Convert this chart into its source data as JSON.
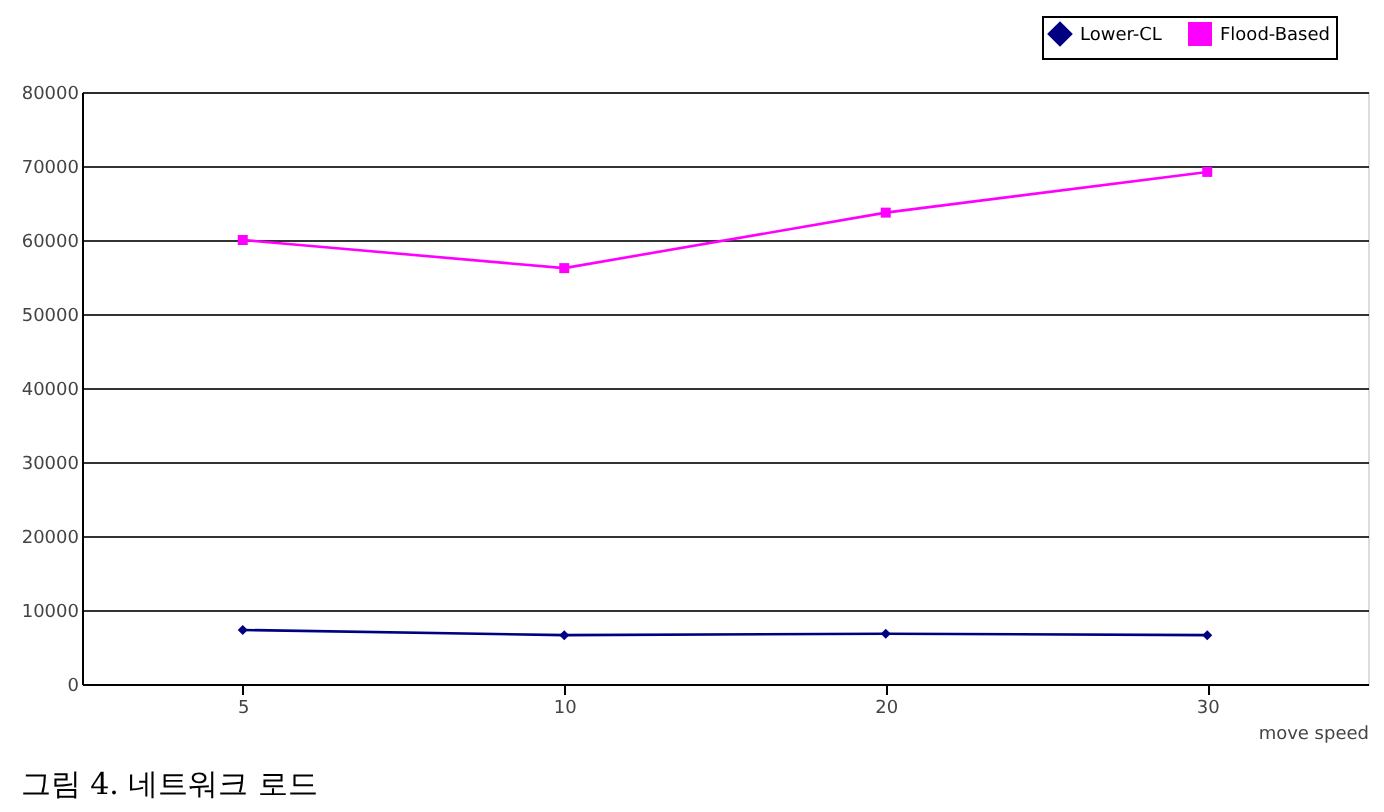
{
  "chart_data": {
    "type": "line",
    "xlabel": "move speed",
    "categories": [
      "5",
      "10",
      "20",
      "30"
    ],
    "series": [
      {
        "name": "Lower-CL",
        "color": "#000080",
        "marker": "diamond",
        "values": [
          7300,
          6600,
          6800,
          6600
        ]
      },
      {
        "name": "Flood-Based",
        "color": "#ff00ff",
        "marker": "square",
        "values": [
          60000,
          56200,
          63700,
          69200
        ]
      }
    ],
    "ylim": [
      0,
      80000
    ],
    "yticks": [
      0,
      10000,
      20000,
      30000,
      40000,
      50000,
      60000,
      70000,
      80000
    ],
    "grid": "y",
    "legend": "top right",
    "line_style": "solid",
    "annotations": [
      "그림 4. 네트워크 로드"
    ]
  }
}
